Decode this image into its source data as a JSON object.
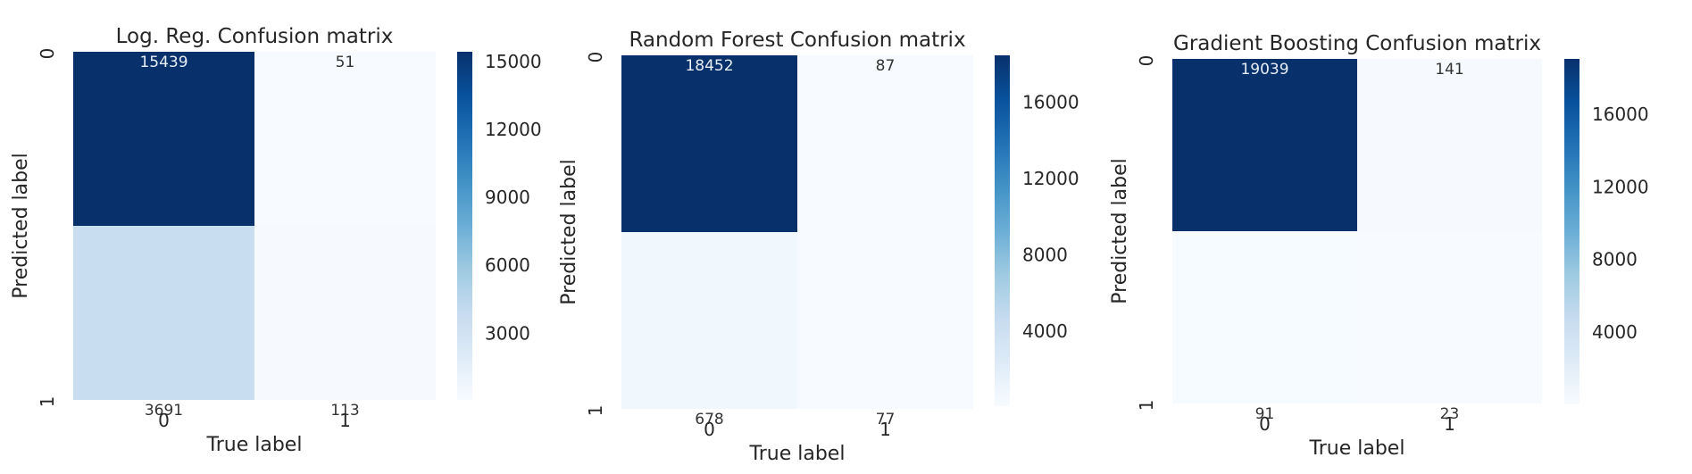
{
  "chart_data": [
    {
      "type": "heatmap",
      "title": "Log. Reg. Confusion matrix",
      "xlabel": "True label",
      "ylabel": "Predicted label",
      "x_ticks": [
        "0",
        "1"
      ],
      "y_ticks": [
        "0",
        "1"
      ],
      "values": [
        [
          15439,
          51
        ],
        [
          3691,
          113
        ]
      ],
      "colorbar": {
        "ticks": [
          3000,
          6000,
          9000,
          12000,
          15000
        ],
        "min": 51,
        "max": 15439
      },
      "colormap": "Blues"
    },
    {
      "type": "heatmap",
      "title": "Random Forest Confusion matrix",
      "xlabel": "True label",
      "ylabel": "Predicted label",
      "x_ticks": [
        "0",
        "1"
      ],
      "y_ticks": [
        "0",
        "1"
      ],
      "values": [
        [
          18452,
          87
        ],
        [
          678,
          77
        ]
      ],
      "colorbar": {
        "ticks": [
          4000,
          8000,
          12000,
          16000
        ],
        "min": 77,
        "max": 18452
      },
      "colormap": "Blues"
    },
    {
      "type": "heatmap",
      "title": "Gradient Boosting Confusion matrix",
      "xlabel": "True label",
      "ylabel": "Predicted label",
      "x_ticks": [
        "0",
        "1"
      ],
      "y_ticks": [
        "0",
        "1"
      ],
      "values": [
        [
          19039,
          141
        ],
        [
          91,
          23
        ]
      ],
      "colorbar": {
        "ticks": [
          4000,
          8000,
          12000,
          16000
        ],
        "min": 23,
        "max": 19039
      },
      "colormap": "Blues"
    }
  ]
}
